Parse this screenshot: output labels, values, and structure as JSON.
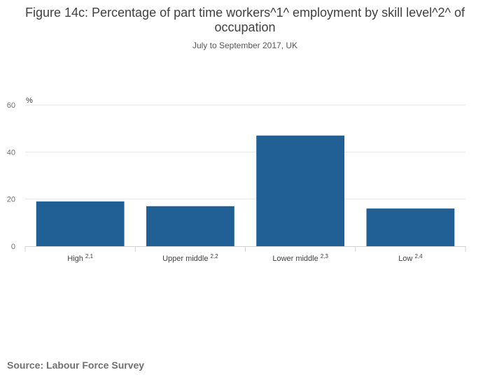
{
  "chart_data": {
    "type": "bar",
    "title": "Figure 14c: Percentage of part time workers^1^ employment by skill level^2^ of occupation",
    "subtitle": "July to September 2017, UK",
    "ylabel": "%",
    "ylim": [
      0,
      60
    ],
    "yticks": [
      0,
      20,
      40,
      60
    ],
    "categories": [
      "High",
      "Upper middle",
      "Lower middle",
      "Low"
    ],
    "category_notes": [
      "2,1",
      "2,2",
      "2,3",
      "2,4"
    ],
    "values": [
      19,
      17,
      47,
      16
    ],
    "bar_color": "#206095",
    "grid": true,
    "legend": "none"
  },
  "source": "Source: Labour Force Survey"
}
